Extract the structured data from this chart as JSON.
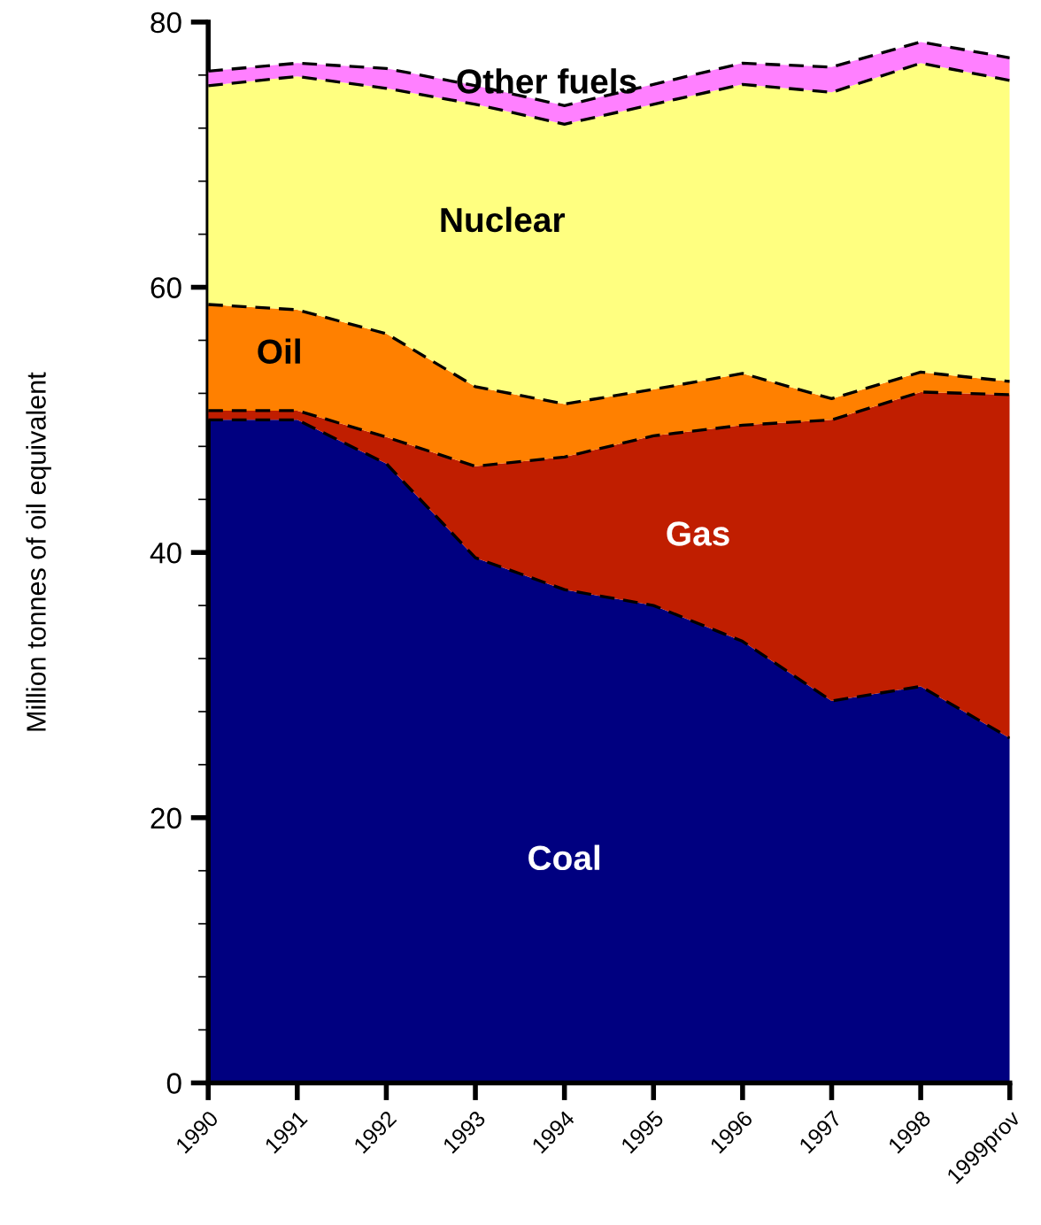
{
  "chart_data": {
    "type": "area",
    "stacked": true,
    "ylabel": "Million tonnes of oil equivalent",
    "categories": [
      "1990",
      "1991",
      "1992",
      "1993",
      "1994",
      "1995",
      "1996",
      "1997",
      "1998",
      "1999prov"
    ],
    "ylim": [
      0,
      80
    ],
    "yticks": [
      0,
      20,
      40,
      60,
      80
    ],
    "grid": false,
    "legend": false,
    "line_style": "dashed",
    "series": [
      {
        "name": "Coal",
        "color": "#000080",
        "values": [
          50.0,
          50.0,
          46.7,
          39.6,
          37.2,
          36.0,
          33.3,
          28.8,
          29.9,
          26.0
        ]
      },
      {
        "name": "Gas",
        "color": "#c01e00",
        "values": [
          0.7,
          0.7,
          2.0,
          6.9,
          10.0,
          12.8,
          16.3,
          21.2,
          22.2,
          25.9
        ]
      },
      {
        "name": "Oil",
        "color": "#ff8000",
        "values": [
          8.0,
          7.6,
          7.8,
          6.0,
          4.0,
          3.5,
          3.9,
          1.6,
          1.5,
          1.0
        ]
      },
      {
        "name": "Nuclear",
        "color": "#ffff80",
        "values": [
          16.5,
          17.6,
          18.5,
          21.3,
          21.1,
          21.5,
          21.8,
          23.1,
          23.3,
          22.7
        ]
      },
      {
        "name": "Other fuels",
        "color": "#ff80ff",
        "values": [
          1.1,
          1.0,
          1.5,
          1.4,
          1.4,
          1.5,
          1.6,
          1.9,
          1.6,
          1.7
        ]
      }
    ]
  }
}
